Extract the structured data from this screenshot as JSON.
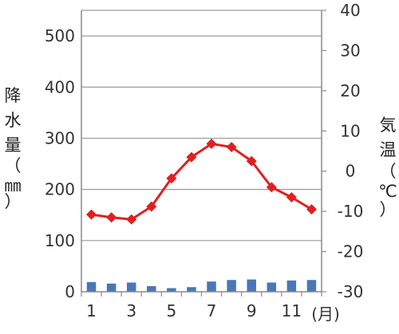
{
  "chart_data": {
    "type": "bar+line",
    "categories": [
      "1",
      "2",
      "3",
      "4",
      "5",
      "6",
      "7",
      "8",
      "9",
      "10",
      "11",
      "12"
    ],
    "x_tick_labels": [
      "1",
      "3",
      "5",
      "7",
      "9",
      "11"
    ],
    "x_unit_label": "(月)",
    "ylabel_left": [
      "降",
      "水",
      "量",
      "（",
      "㎜",
      "）"
    ],
    "ylabel_right": [
      "気",
      "温",
      "（",
      "℃",
      "）"
    ],
    "y_left": {
      "lim": [
        0,
        550
      ],
      "ticks": [
        "0",
        "100",
        "200",
        "300",
        "400",
        "500"
      ]
    },
    "y_right": {
      "lim": [
        -30,
        40
      ],
      "ticks": [
        "40",
        "30",
        "20",
        "10",
        "0",
        "-10",
        "-20",
        "-30"
      ]
    },
    "grid": "horizontal",
    "series": [
      {
        "type": "bar",
        "axis": "left",
        "color": "#4a76b8",
        "values": [
          19,
          16,
          18,
          11,
          7,
          9,
          20,
          23,
          24,
          18,
          22,
          23
        ]
      },
      {
        "type": "line",
        "axis": "right",
        "color": "#e02020",
        "marker": "diamond",
        "values": [
          -10.8,
          -11.5,
          -12.0,
          -8.8,
          -1.8,
          3.5,
          6.8,
          6.0,
          2.5,
          -4.0,
          -6.5,
          -9.5
        ]
      }
    ]
  }
}
